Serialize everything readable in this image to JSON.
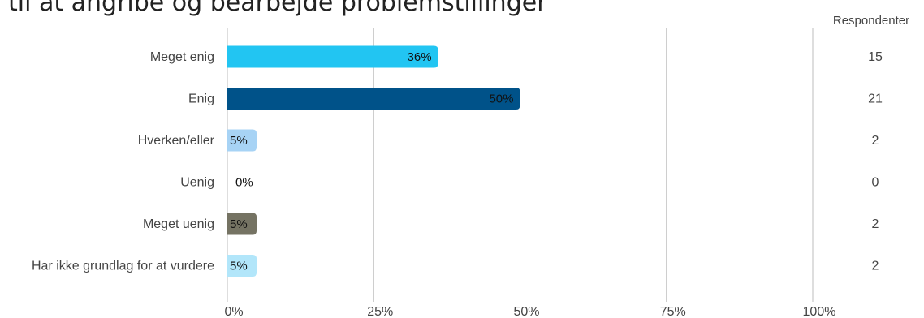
{
  "title": "til at angribe og bearbejde problemstillinger",
  "chart_data": {
    "type": "bar",
    "orientation": "horizontal",
    "categories": [
      "Meget enig",
      "Enig",
      "Hverken/eller",
      "Uenig",
      "Meget uenig",
      "Har ikke grundlag for at vurdere"
    ],
    "values": [
      36,
      50,
      5,
      0,
      5,
      5
    ],
    "value_labels": [
      "36%",
      "50%",
      "5%",
      "0%",
      "5%",
      "5%"
    ],
    "colors": [
      "#22c5f2",
      "#005289",
      "#a7d3f5",
      "#ffffff",
      "#757363",
      "#b2e6fa"
    ],
    "xlim": [
      0,
      100
    ],
    "x_ticks": [
      "0%",
      "25%",
      "50%",
      "75%",
      "100%"
    ],
    "grid": true,
    "respondents_header": "Respondenter",
    "respondents": [
      "15",
      "21",
      "2",
      "0",
      "2",
      "2"
    ]
  }
}
